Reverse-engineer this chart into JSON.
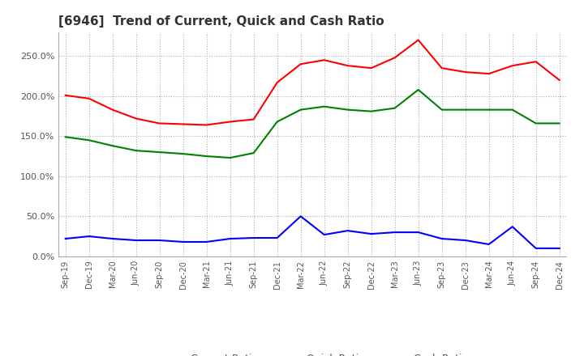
{
  "title": "[6946]  Trend of Current, Quick and Cash Ratio",
  "x_labels": [
    "Sep-19",
    "Dec-19",
    "Mar-20",
    "Jun-20",
    "Sep-20",
    "Dec-20",
    "Mar-21",
    "Jun-21",
    "Sep-21",
    "Dec-21",
    "Mar-22",
    "Jun-22",
    "Sep-22",
    "Dec-22",
    "Mar-23",
    "Jun-23",
    "Sep-23",
    "Dec-23",
    "Mar-24",
    "Jun-24",
    "Sep-24",
    "Dec-24"
  ],
  "current_ratio": [
    201,
    197,
    183,
    172,
    166,
    165,
    164,
    168,
    171,
    217,
    240,
    245,
    238,
    235,
    248,
    270,
    235,
    230,
    228,
    238,
    243,
    220
  ],
  "quick_ratio": [
    149,
    145,
    138,
    132,
    130,
    128,
    125,
    123,
    129,
    168,
    183,
    187,
    183,
    181,
    185,
    208,
    183,
    183,
    183,
    183,
    166,
    166
  ],
  "cash_ratio": [
    22,
    25,
    22,
    20,
    20,
    18,
    18,
    22,
    23,
    23,
    50,
    27,
    32,
    28,
    30,
    30,
    22,
    20,
    15,
    37,
    10,
    10
  ],
  "current_color": "#ff0000",
  "quick_color": "#008000",
  "cash_color": "#0000ff",
  "ylim": [
    0,
    280
  ],
  "yticks": [
    0,
    50,
    100,
    150,
    200,
    250
  ],
  "ytick_labels": [
    "0.0%",
    "50.0%",
    "100.0%",
    "150.0%",
    "200.0%",
    "250.0%"
  ],
  "background_color": "#ffffff",
  "plot_bg_color": "#ffffff",
  "grid_color": "#aaaaaa",
  "title_fontsize": 11,
  "legend_labels": [
    "Current Ratio",
    "Quick Ratio",
    "Cash Ratio"
  ]
}
